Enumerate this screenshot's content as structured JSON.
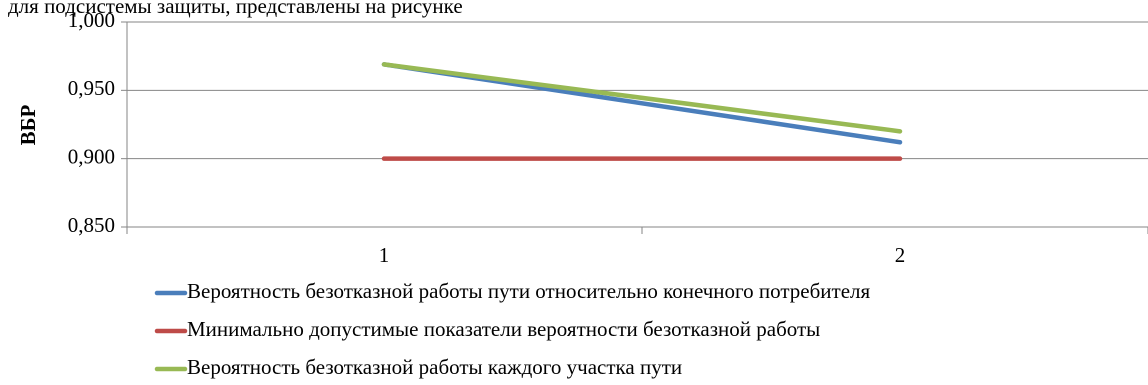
{
  "top_text": "для подсистемы защиты, представлены на рисунке",
  "chart_data": {
    "type": "line",
    "categories": [
      "1",
      "2"
    ],
    "ylabel": "ВБР",
    "ylim": [
      0.85,
      1.0
    ],
    "yticks": [
      "0,850",
      "0,900",
      "0,950",
      "1,000"
    ],
    "ytick_values": [
      0.85,
      0.9,
      0.95,
      1.0
    ],
    "grid": true,
    "legend_position": "bottom",
    "series": [
      {
        "name": "Вероятность безотказной работы пути относительно конечного потребителя",
        "color": "#4a7ebb",
        "values": [
          0.969,
          0.912
        ]
      },
      {
        "name": "Минимально допустимые показатели вероятности безотказной работы",
        "color": "#be4b48",
        "values": [
          0.9,
          0.9
        ]
      },
      {
        "name": "Вероятность безотказной работы каждого участка пути",
        "color": "#98b954",
        "values": [
          0.969,
          0.92
        ]
      }
    ]
  }
}
